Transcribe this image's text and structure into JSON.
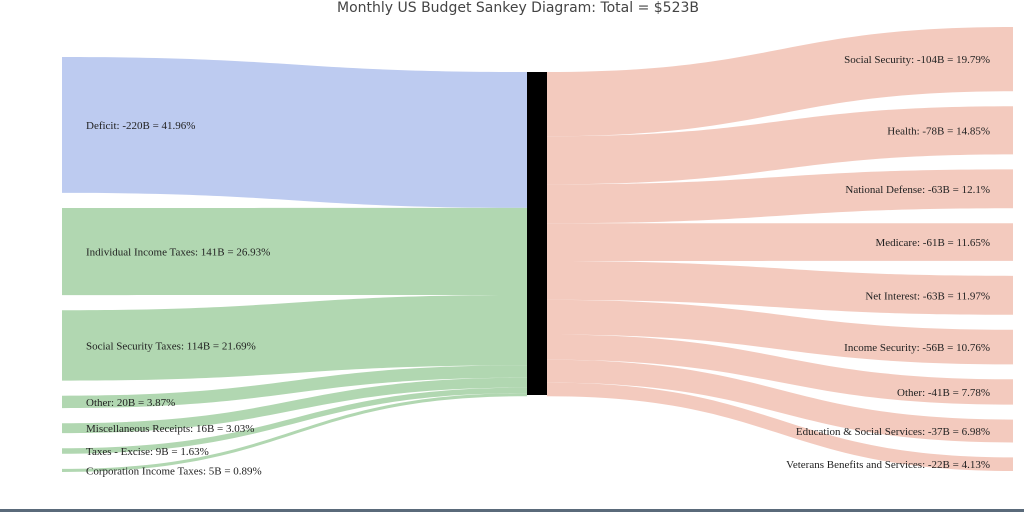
{
  "chart_data": {
    "type": "sankey",
    "title": "Monthly US Budget Sankey Diagram: Total = $523B",
    "total": 523,
    "center_node_color": "#000000",
    "colors": {
      "deficit": "#b9c8ef",
      "revenue": "#add5ad",
      "spending": "#f2c7bb"
    },
    "sources": [
      {
        "label": "Deficit: -220B = 41.96%",
        "value": 220,
        "kind": "deficit"
      },
      {
        "label": "Individual Income Taxes: 141B = 26.93%",
        "value": 141,
        "kind": "revenue"
      },
      {
        "label": "Social Security Taxes: 114B = 21.69%",
        "value": 114,
        "kind": "revenue"
      },
      {
        "label": "Other: 20B = 3.87%",
        "value": 20,
        "kind": "revenue"
      },
      {
        "label": "Miscellaneous Receipts: 16B = 3.03%",
        "value": 16,
        "kind": "revenue"
      },
      {
        "label": "Taxes - Excise: 9B = 1.63%",
        "value": 9,
        "kind": "revenue"
      },
      {
        "label": "Corporation Income Taxes: 5B = 0.89%",
        "value": 5,
        "kind": "revenue"
      }
    ],
    "targets": [
      {
        "label": "Social Security: -104B = 19.79%",
        "value": 104
      },
      {
        "label": "Health: -78B = 14.85%",
        "value": 78
      },
      {
        "label": "National Defense: -63B = 12.1%",
        "value": 63
      },
      {
        "label": "Medicare: -61B = 11.65%",
        "value": 61
      },
      {
        "label": "Net Interest: -63B = 11.97%",
        "value": 63
      },
      {
        "label": "Income Security: -56B = 10.76%",
        "value": 56
      },
      {
        "label": "Other: -41B = 7.78%",
        "value": 41
      },
      {
        "label": "Education & Social Services: -37B = 6.98%",
        "value": 37
      },
      {
        "label": "Veterans Benefits and Services: -22B = 4.13%",
        "value": 22
      }
    ]
  }
}
